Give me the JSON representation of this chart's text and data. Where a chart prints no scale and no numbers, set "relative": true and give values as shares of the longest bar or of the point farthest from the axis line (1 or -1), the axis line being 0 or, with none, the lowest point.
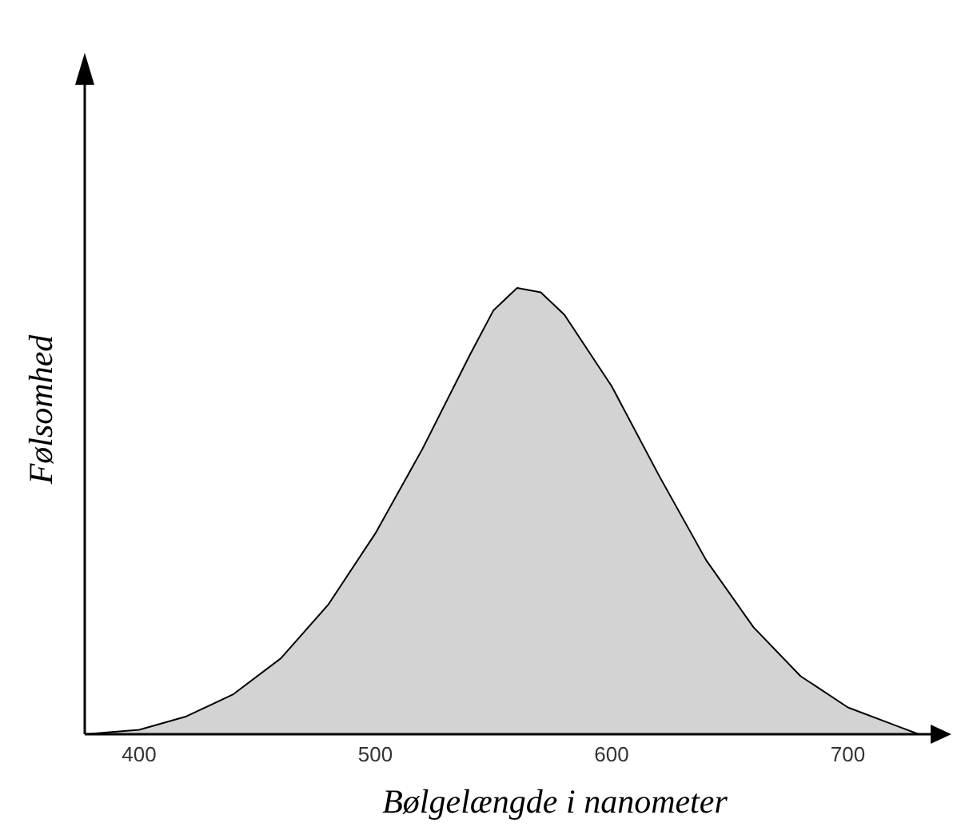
{
  "chart_data": {
    "type": "area",
    "xlabel": "Bølgelængde i nanometer",
    "ylabel": "Følsomhed",
    "relative": true,
    "x": [
      377,
      400,
      420,
      440,
      460,
      480,
      500,
      520,
      540,
      550,
      560,
      570,
      580,
      600,
      620,
      640,
      660,
      680,
      700,
      720,
      730
    ],
    "series": [
      {
        "color": "#d3d3d3",
        "values": [
          0,
          0.01,
          0.04,
          0.09,
          0.17,
          0.29,
          0.45,
          0.64,
          0.85,
          0.95,
          1.0,
          0.99,
          0.94,
          0.78,
          0.58,
          0.39,
          0.24,
          0.13,
          0.06,
          0.02,
          0
        ]
      }
    ],
    "xlim": [
      377,
      735
    ],
    "xticks": [
      400,
      500,
      600,
      700
    ],
    "grid": false,
    "legend": false
  }
}
